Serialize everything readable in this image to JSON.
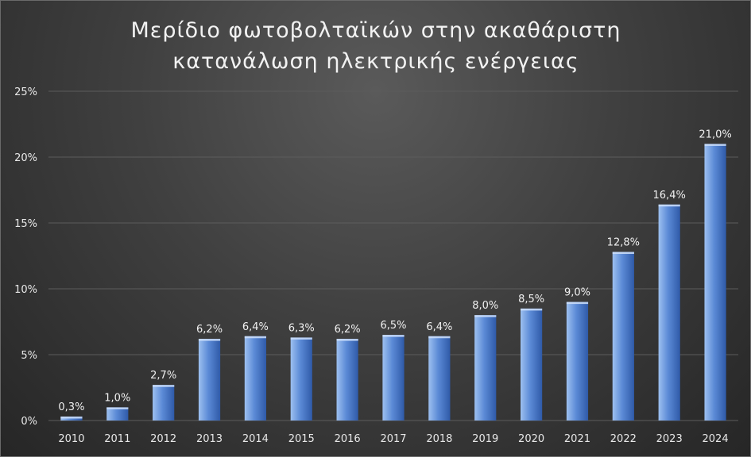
{
  "chart_data": {
    "type": "bar",
    "title_lines": [
      "Μερίδιο φωτοβολταϊκών στην ακαθάριστη",
      "κατανάλωση ηλεκτρικής ενέργειας"
    ],
    "categories": [
      "2010",
      "2011",
      "2012",
      "2013",
      "2014",
      "2015",
      "2016",
      "2017",
      "2018",
      "2019",
      "2020",
      "2021",
      "2022",
      "2023",
      "2024"
    ],
    "values": [
      0.3,
      1.0,
      2.7,
      6.2,
      6.4,
      6.3,
      6.2,
      6.5,
      6.4,
      8.0,
      8.5,
      9.0,
      12.8,
      16.4,
      21.0
    ],
    "data_labels": [
      "0,3%",
      "1,0%",
      "2,7%",
      "6,2%",
      "6,4%",
      "6,3%",
      "6,2%",
      "6,5%",
      "6,4%",
      "8,0%",
      "8,5%",
      "9,0%",
      "12,8%",
      "16,4%",
      "21,0%"
    ],
    "y_ticks": [
      0,
      5,
      10,
      15,
      20,
      25
    ],
    "y_tick_labels": [
      "0%",
      "5%",
      "10%",
      "15%",
      "20%",
      "25%"
    ],
    "ylim": [
      0,
      25
    ],
    "grid": true,
    "legend": "none",
    "colors": {
      "bar_light": "#9dc0f0",
      "bar_mid": "#5b8ad6",
      "bar_dark": "#2f5aa8",
      "gridline": "#5c5c5c",
      "text": "#f0f0f0"
    }
  }
}
